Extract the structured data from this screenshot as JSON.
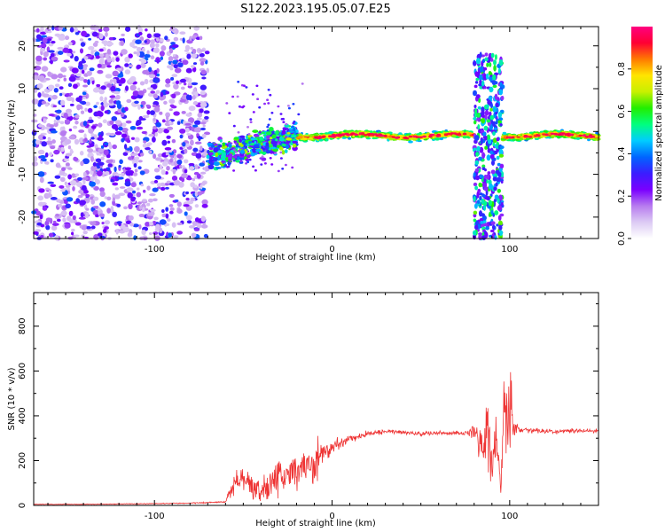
{
  "title": "S122.2023.195.05.07.E25",
  "chart_data": [
    {
      "type": "heatmap",
      "title": "",
      "xlabel": "Height of straight line (km)",
      "ylabel": "Frequency (Hz)",
      "xlim": [
        -168,
        150
      ],
      "ylim": [
        -25,
        24.5
      ],
      "x_ticks": [
        -100,
        0,
        100
      ],
      "y_ticks": [
        -20,
        -10,
        0,
        10,
        20
      ],
      "grid": false,
      "colorbar": {
        "label": "Normalized spectral amplitude",
        "range": [
          0,
          1
        ],
        "ticks": [
          "0.0",
          "0.2",
          "0.4",
          "0.6",
          "0.8"
        ],
        "colormap": [
          "#ffffff",
          "#dccbf4",
          "#b77bef",
          "#7a00ff",
          "#3a1dff",
          "#0066ff",
          "#00ccff",
          "#00ff7f",
          "#22ee00",
          "#c8f000",
          "#ffe500",
          "#ff7a00",
          "#ff0033",
          "#ff0080"
        ]
      },
      "regions": [
        {
          "x_range": [
            -168,
            -70
          ],
          "freq_range": [
            -25,
            24.5
          ],
          "amplitude": "scattered 0.1-0.3 (noise)"
        },
        {
          "x_range": [
            -70,
            -20
          ],
          "center_freq": -5,
          "spread_hz": 6,
          "amplitude": "0.3-0.7"
        },
        {
          "x_range": [
            -20,
            80
          ],
          "center_freq": -1,
          "spread_hz": 2,
          "amplitude": "0.6-1.0"
        },
        {
          "x_range": [
            80,
            96
          ],
          "freq_range": [
            -25,
            18
          ],
          "amplitude": "0.2-0.6"
        },
        {
          "x_range": [
            96,
            150
          ],
          "center_freq": -0.5,
          "spread_hz": 2,
          "amplitude": "0.6-1.0"
        }
      ]
    },
    {
      "type": "line",
      "title": "",
      "xlabel": "Height of straight line (km)",
      "ylabel": "SNR (10 * v/v)",
      "xlim": [
        -168,
        150
      ],
      "ylim": [
        0,
        950
      ],
      "x_ticks": [
        -100,
        0,
        100
      ],
      "y_ticks": [
        0,
        200,
        400,
        600,
        800
      ],
      "grid": false,
      "series": [
        {
          "color": "#ee3333",
          "x": [
            -168,
            -140,
            -100,
            -80,
            -60,
            -55,
            -50,
            -45,
            -40,
            -35,
            -30,
            -25,
            -20,
            -15,
            -10,
            -5,
            0,
            10,
            20,
            30,
            40,
            50,
            60,
            70,
            75,
            80,
            85,
            88,
            90,
            92,
            95,
            97,
            99,
            100,
            102,
            105,
            120,
            150
          ],
          "y": [
            5,
            5,
            8,
            10,
            15,
            100,
            120,
            90,
            60,
            80,
            130,
            150,
            140,
            180,
            200,
            230,
            260,
            300,
            320,
            330,
            325,
            320,
            322,
            325,
            320,
            330,
            250,
            400,
            150,
            350,
            60,
            450,
            350,
            500,
            350,
            340,
            330,
            335
          ],
          "spike_amplitude": [
            2,
            2,
            3,
            3,
            5,
            70,
            80,
            90,
            80,
            100,
            110,
            130,
            120,
            130,
            140,
            80,
            50,
            25,
            18,
            15,
            15,
            15,
            15,
            15,
            20,
            50,
            120,
            300,
            120,
            250,
            50,
            300,
            150,
            350,
            100,
            20,
            15,
            15
          ]
        }
      ]
    }
  ]
}
